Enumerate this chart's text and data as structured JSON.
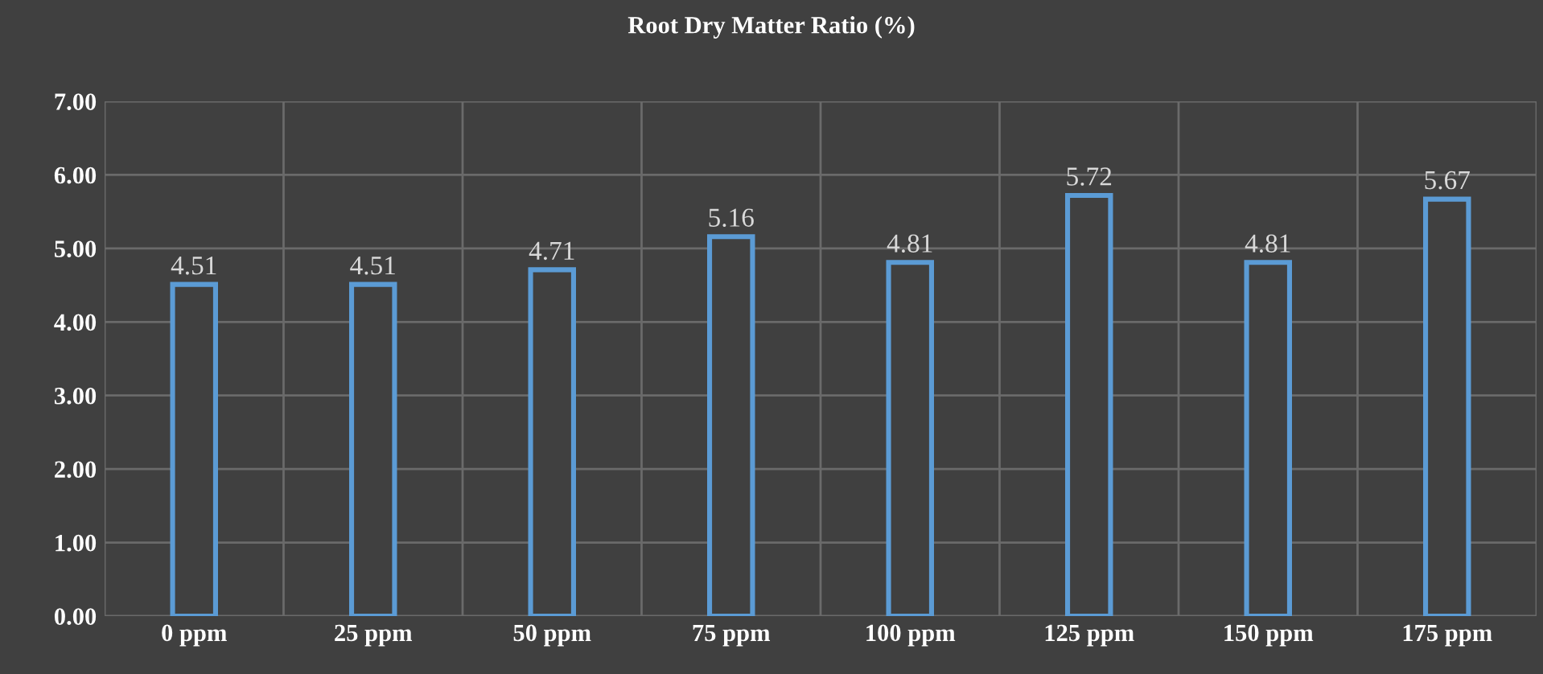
{
  "chart_data": {
    "type": "bar",
    "title": "Root Dry Matter Ratio (%)",
    "categories": [
      "0 ppm",
      "25 ppm",
      "50 ppm",
      "75 ppm",
      "100 ppm",
      "125 ppm",
      "150 ppm",
      "175 ppm"
    ],
    "values": [
      4.51,
      4.51,
      4.71,
      5.16,
      4.81,
      5.72,
      4.81,
      5.67
    ],
    "color": "#5b9bd5",
    "ylim": [
      0,
      7
    ],
    "yticks": [
      {
        "value": 0,
        "label": "0.00"
      },
      {
        "value": 1,
        "label": "1.00"
      },
      {
        "value": 2,
        "label": "2.00"
      },
      {
        "value": 3,
        "label": "3.00"
      },
      {
        "value": 4,
        "label": "4.00"
      },
      {
        "value": 5,
        "label": "5.00"
      },
      {
        "value": 6,
        "label": "6.00"
      },
      {
        "value": 7,
        "label": "7.00"
      }
    ],
    "grid": true,
    "data_labels": true
  }
}
